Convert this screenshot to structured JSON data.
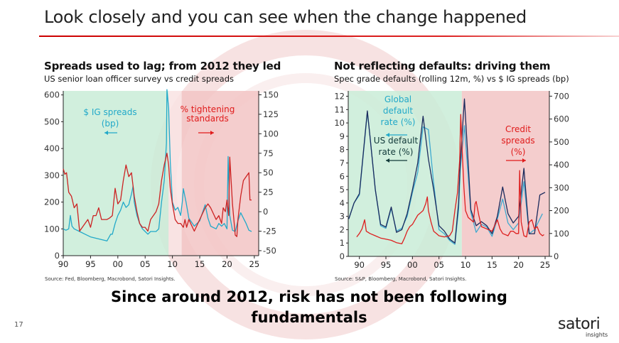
{
  "slide": {
    "title": "Look closely and you can see when the change happened",
    "caption": "Since around 2012, risk has not been following fundamentals",
    "page_number": "17",
    "logo": {
      "text": "satori",
      "subtext": "insights"
    },
    "accent_color": "#cc0000"
  },
  "chart_data": [
    {
      "type": "line",
      "title": "Spreads used to lag; from 2012 they led",
      "subtitle": "US senior loan officer survey vs credit spreads",
      "source": "Source: Fed, Bloomberg, Macrobond, Satori Insights.",
      "x_ticks": [
        1990,
        1995,
        2000,
        2005,
        2010,
        2015,
        2020,
        2025
      ],
      "x_tick_labels": [
        "90",
        "95",
        "00",
        "05",
        "10",
        "15",
        "20",
        "25"
      ],
      "xlim": [
        1990,
        2025.8
      ],
      "y_left": {
        "lim": [
          0,
          615
        ],
        "ticks": [
          0,
          100,
          200,
          300,
          400,
          500,
          600
        ]
      },
      "y_right": {
        "lim": [
          -56.4,
          155
        ],
        "ticks": [
          -50,
          -25,
          0,
          25,
          50,
          75,
          100,
          125,
          150
        ]
      },
      "shading": [
        {
          "from": 1990,
          "to": 2009.3,
          "color": "#c9ecd7"
        },
        {
          "from": 2009.3,
          "to": 2011.7,
          "color": "#f9e3e3"
        },
        {
          "from": 2011.7,
          "to": 2025.8,
          "color": "#f2c4c4"
        }
      ],
      "annotations": [
        {
          "text": "$ IG spreads",
          "color": "#22a9c9"
        },
        {
          "text": "(bp)",
          "color": "#22a9c9"
        },
        {
          "text": "% tightening",
          "color": "#e01b1b"
        },
        {
          "text": "standards",
          "color": "#e01b1b"
        }
      ],
      "series": [
        {
          "name": "$ IG spreads (bp)",
          "axis": "left",
          "color": "#22a9c9",
          "x": [
            1990,
            1990.5,
            1991,
            1991.3,
            1991.6,
            1992,
            1993,
            1994,
            1995,
            1996,
            1997,
            1998,
            1998.7,
            1999,
            1999.5,
            2000,
            2000.5,
            2001,
            2001.5,
            2002,
            2002.5,
            2002.8,
            2003,
            2003.5,
            2004,
            2004.5,
            2005,
            2005.5,
            2006,
            2007,
            2007.5,
            2008,
            2008.5,
            2008.9,
            2009,
            2009.3,
            2009.6,
            2010,
            2010.5,
            2011,
            2011.5,
            2011.8,
            2012,
            2012.5,
            2013,
            2014,
            2014.5,
            2015,
            2016,
            2016.5,
            2017,
            2018,
            2018.5,
            2019,
            2019.5,
            2020,
            2020.2,
            2020.5,
            2021,
            2021.5,
            2022,
            2022.5,
            2023,
            2023.5,
            2024,
            2024.5
          ],
          "y": [
            100,
            95,
            100,
            150,
            110,
            100,
            90,
            80,
            70,
            65,
            60,
            55,
            80,
            80,
            120,
            150,
            170,
            200,
            180,
            190,
            230,
            260,
            200,
            150,
            120,
            100,
            90,
            80,
            90,
            90,
            100,
            200,
            280,
            420,
            620,
            550,
            350,
            200,
            170,
            180,
            150,
            200,
            250,
            200,
            140,
            110,
            120,
            130,
            190,
            140,
            110,
            100,
            120,
            110,
            120,
            100,
            370,
            150,
            95,
            90,
            130,
            160,
            140,
            120,
            95,
            90
          ]
        },
        {
          "name": "% tightening standards",
          "axis": "right",
          "color": "#cc2222",
          "x": [
            1990,
            1990.3,
            1990.6,
            1991,
            1991.5,
            1992,
            1992.5,
            1993,
            1994,
            1994.5,
            1995,
            1995.5,
            1996,
            1996.5,
            1997,
            1998,
            1998.5,
            1999,
            1999.5,
            2000,
            2000.5,
            2001,
            2001.5,
            2002,
            2002.5,
            2003,
            2003.5,
            2004,
            2004.5,
            2005,
            2005.5,
            2006,
            2007,
            2007.5,
            2008,
            2008.5,
            2009,
            2009.3,
            2009.6,
            2010,
            2010.5,
            2011,
            2011.5,
            2012,
            2012.3,
            2012.6,
            2013,
            2014,
            2015,
            2016,
            2016.5,
            2017,
            2018,
            2018.5,
            2019,
            2019.3,
            2019.7,
            2020,
            2020.3,
            2020.5,
            2021,
            2021.5,
            2021.8,
            2022,
            2022.5,
            2023,
            2023.5,
            2024,
            2024.2,
            2024.5
          ],
          "y": [
            55,
            48,
            50,
            25,
            20,
            5,
            10,
            -25,
            -15,
            -10,
            -20,
            -5,
            -5,
            5,
            -10,
            -10,
            -8,
            -5,
            30,
            10,
            15,
            40,
            60,
            45,
            50,
            20,
            0,
            -15,
            -20,
            -20,
            -25,
            -10,
            0,
            10,
            40,
            60,
            75,
            60,
            30,
            10,
            -10,
            -15,
            -15,
            -20,
            -10,
            -20,
            -10,
            -25,
            -10,
            5,
            10,
            5,
            -10,
            -5,
            -15,
            5,
            0,
            15,
            -5,
            70,
            10,
            -30,
            -32,
            -10,
            20,
            40,
            45,
            50,
            15,
            15
          ]
        }
      ]
    },
    {
      "type": "line",
      "title": "Not reflecting defaults: driving them",
      "subtitle": "Spec grade defaults (rolling 12m, %) vs $ IG spreads (bp)",
      "source": "Source: S&P, Bloomberg, Macrobond, Satori Insights.",
      "x_ticks": [
        1990,
        1995,
        2000,
        2005,
        2010,
        2015,
        2020,
        2025
      ],
      "x_tick_labels": [
        "90",
        "95",
        "00",
        "05",
        "10",
        "15",
        "20",
        "25"
      ],
      "xlim": [
        1987.9,
        2025.8
      ],
      "y_left": {
        "lim": [
          0,
          12.4
        ],
        "ticks": [
          0,
          1,
          2,
          3,
          4,
          5,
          6,
          7,
          8,
          9,
          10,
          11,
          12
        ]
      },
      "y_right": {
        "lim": [
          0,
          723
        ],
        "ticks": [
          0,
          100,
          200,
          300,
          400,
          500,
          600,
          700
        ]
      },
      "shading": [
        {
          "from": 1987.9,
          "to": 2009.3,
          "color": "#c9ecd7"
        },
        {
          "from": 2009.3,
          "to": 2025.8,
          "color": "#f2c4c4"
        }
      ],
      "annotations": [
        {
          "text": "Global",
          "color": "#22a9c9"
        },
        {
          "text": "default",
          "color": "#22a9c9"
        },
        {
          "text": "rate (%)",
          "color": "#22a9c9"
        },
        {
          "text": "US default",
          "color": "#123a3a"
        },
        {
          "text": "rate (%)",
          "color": "#123a3a"
        },
        {
          "text": "Credit",
          "color": "#e01b1b"
        },
        {
          "text": "spreads",
          "color": "#e01b1b"
        },
        {
          "text": "(%)",
          "color": "#e01b1b"
        }
      ],
      "series": [
        {
          "name": "Global default rate (%)",
          "axis": "left",
          "color": "#3fa9cf",
          "x": [
            1988,
            1989,
            1990,
            1991.5,
            1992,
            1993,
            1994,
            1995,
            1996,
            1997,
            1998,
            1999,
            2000,
            2001,
            2002,
            2003,
            2004,
            2005,
            2006,
            2007,
            2008,
            2008.7,
            2009,
            2009.8,
            2010.5,
            2011,
            2012,
            2013,
            2014,
            2015,
            2016,
            2017,
            2018,
            2019,
            2020,
            2021,
            2022,
            2023,
            2024.5
          ],
          "y": [
            2.8,
            4.0,
            4.6,
            10.8,
            9,
            5,
            2.3,
            2.1,
            3.6,
            1.9,
            2.1,
            3.0,
            4.8,
            6.3,
            9.7,
            9.5,
            5.5,
            2.0,
            1.7,
            1.2,
            0.9,
            3.5,
            6.5,
            9.8,
            6,
            3.3,
            1.8,
            2.4,
            2.2,
            1.5,
            2.8,
            4.3,
            2.5,
            2.0,
            2.5,
            5.6,
            1.7,
            2.0,
            3.2
          ]
        },
        {
          "name": "US default rate (%)",
          "axis": "left",
          "color": "#1b2a5c",
          "x": [
            1988,
            1989,
            1990,
            1991.5,
            1992,
            1993,
            1994,
            1995,
            1996,
            1997,
            1998,
            1999,
            2000,
            2001,
            2002,
            2003,
            2004,
            2005,
            2006,
            2007,
            2008,
            2008.7,
            2009,
            2009.8,
            2010.5,
            2011,
            2012,
            2013,
            2014,
            2015,
            2016,
            2017,
            2018,
            2019,
            2020,
            2021,
            2022,
            2023,
            2024,
            2025
          ],
          "y": [
            2.8,
            4.0,
            4.7,
            10.9,
            9,
            5,
            2.4,
            2.2,
            3.7,
            1.8,
            2.0,
            3.2,
            5,
            7,
            10.5,
            7.3,
            5,
            2.3,
            1.9,
            1.3,
            1.0,
            4,
            7,
            11.8,
            7,
            3.5,
            2.3,
            2.6,
            2.3,
            1.7,
            3.0,
            5.2,
            3.2,
            2.5,
            3,
            6.6,
            1.7,
            1.7,
            4.6,
            4.8
          ]
        },
        {
          "name": "Credit spreads (%)",
          "axis": "right",
          "color": "#dd1f1f",
          "x": [
            1989.5,
            1990,
            1990.5,
            1991,
            1991.3,
            1992,
            1993,
            1994,
            1995,
            1996,
            1997,
            1998,
            1998.5,
            1999,
            1999.5,
            2000,
            2000.5,
            2001,
            2001.5,
            2002,
            2002.5,
            2002.8,
            2003,
            2003.5,
            2004,
            2004.5,
            2005,
            2006,
            2007,
            2007.5,
            2008,
            2008.5,
            2008.9,
            2009.1,
            2009.4,
            2009.7,
            2010,
            2010.5,
            2011,
            2011.5,
            2011.8,
            2012,
            2012.5,
            2013,
            2014,
            2015,
            2016,
            2016.5,
            2017,
            2018,
            2018.5,
            2019,
            2019.5,
            2020,
            2020.2,
            2020.5,
            2021,
            2021.5,
            2022,
            2022.5,
            2023,
            2023.5,
            2024,
            2024.5,
            2024.8
          ],
          "y": [
            85,
            100,
            120,
            160,
            110,
            100,
            90,
            80,
            75,
            70,
            60,
            55,
            80,
            110,
            130,
            140,
            160,
            180,
            190,
            200,
            230,
            260,
            200,
            150,
            110,
            100,
            90,
            85,
            90,
            110,
            200,
            280,
            420,
            620,
            450,
            300,
            200,
            170,
            160,
            150,
            230,
            240,
            180,
            130,
            120,
            110,
            160,
            120,
            100,
            90,
            110,
            110,
            100,
            100,
            375,
            150,
            90,
            85,
            150,
            160,
            120,
            130,
            100,
            90,
            95
          ]
        }
      ]
    }
  ]
}
